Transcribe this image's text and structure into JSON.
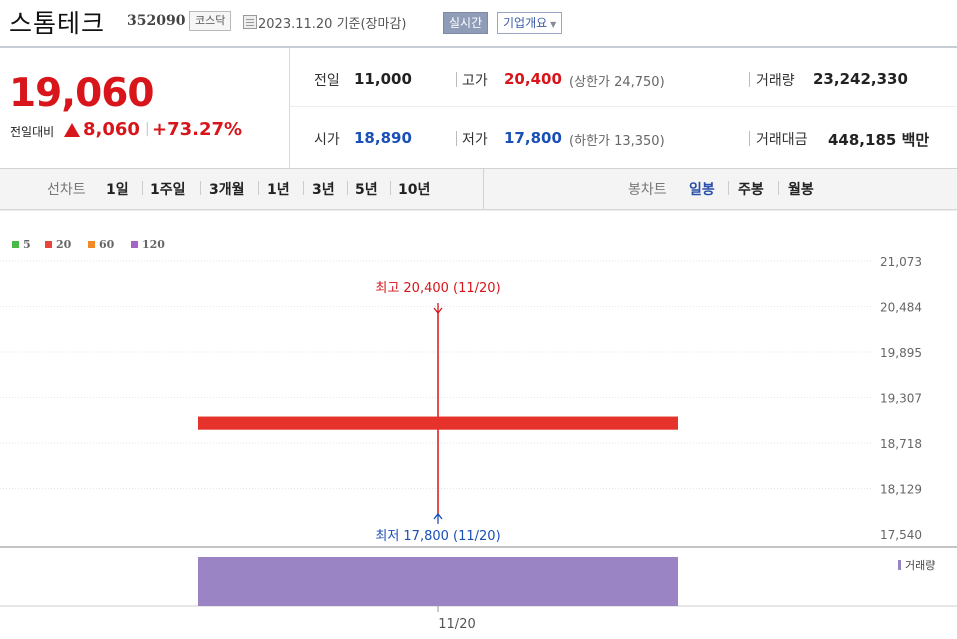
{
  "header": {
    "stock_name": "스톰테크",
    "stock_code": "352090",
    "market": "코스닥",
    "date_text": "2023.11.20  기준(장마감)",
    "realtime_label": "실시간",
    "company_info_label": "기업개요"
  },
  "price": {
    "current": "19,060",
    "change_label": "전일대비",
    "change_value": "8,060",
    "change_percent": "+73.27%",
    "prev_label": "전일",
    "prev_value": "11,000",
    "open_label": "시가",
    "open_value": "18,890",
    "high_label": "고가",
    "high_value": "20,400",
    "upper_limit": "(상한가 24,750)",
    "low_label": "저가",
    "low_value": "17,800",
    "lower_limit": "(하한가 13,350)",
    "volume_label": "거래량",
    "volume_value": "23,242,330",
    "amount_label": "거래대금",
    "amount_value": "448,185",
    "amount_unit": "백만"
  },
  "period_tabs": {
    "line_label": "선차트",
    "line_items": [
      "1일",
      "1주일",
      "3개월",
      "1년",
      "3년",
      "5년",
      "10년"
    ],
    "candle_label": "봉차트",
    "candle_items": [
      "일봉",
      "주봉",
      "월봉"
    ],
    "active_candle": "일봉"
  },
  "colors": {
    "up": "#d7151a",
    "down": "#1a4fb8",
    "volume": "#9b84c4"
  },
  "chart_data": {
    "type": "candlestick",
    "legend": [
      {
        "label": "5",
        "color": "#4bb848"
      },
      {
        "label": "20",
        "color": "#e9443b"
      },
      {
        "label": "60",
        "color": "#f18a27"
      },
      {
        "label": "120",
        "color": "#a466c6"
      }
    ],
    "x": [
      "11/20"
    ],
    "candles": [
      {
        "date": "11/20",
        "open": 18890,
        "high": 20400,
        "low": 17800,
        "close": 19060
      }
    ],
    "volume": [
      23242330
    ],
    "volume_label": "거래량",
    "y_ticks": [
      "21,073",
      "20,484",
      "19,895",
      "19,307",
      "18,718",
      "18,129",
      "17,540"
    ],
    "y_tick_values": [
      21073,
      20484,
      19895,
      19307,
      18718,
      18129,
      17540
    ],
    "ylim": [
      17540,
      21073
    ],
    "high_annotation": "최고 20,400 (11/20)",
    "low_annotation": "최저 17,800 (11/20)",
    "x_tick_labels": [
      "11/20"
    ]
  }
}
